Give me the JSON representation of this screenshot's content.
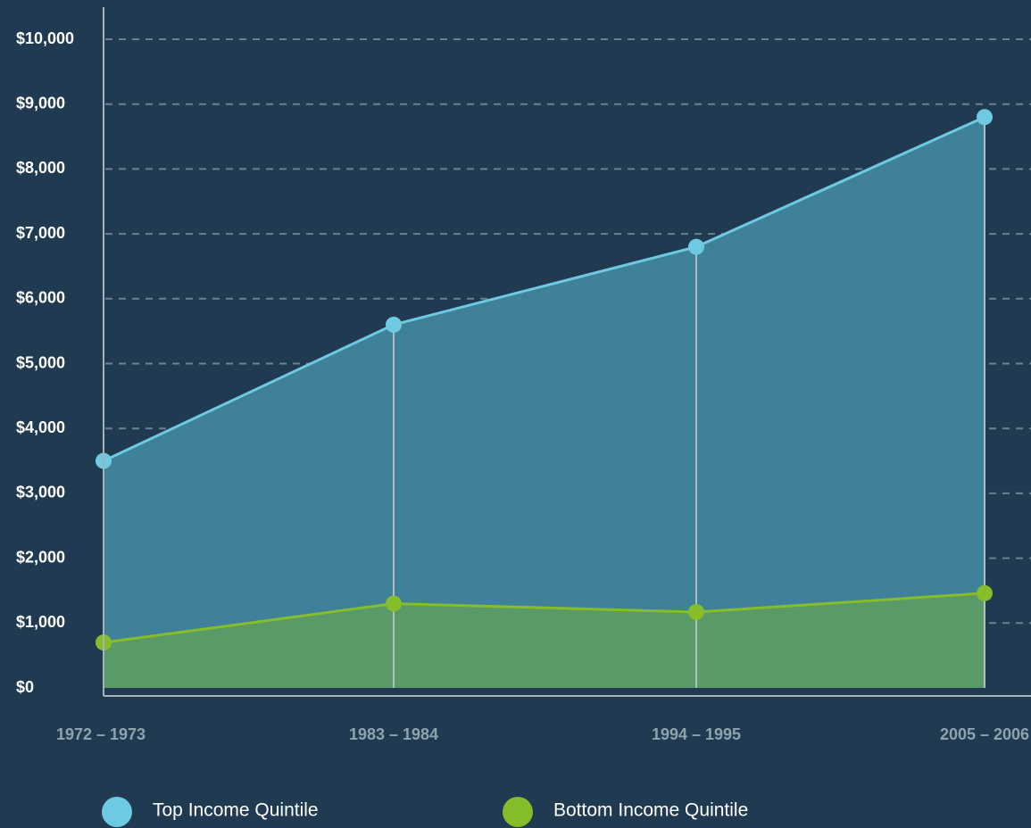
{
  "chart_data": {
    "type": "area",
    "categories": [
      "1972 – 1973",
      "1983 – 1984",
      "1994 – 1995",
      "2005 – 2006"
    ],
    "series": [
      {
        "name": "Top Income Quintile",
        "color": "#6ecae0",
        "fill": "#3f8199",
        "values": [
          3500,
          5600,
          6800,
          8800
        ]
      },
      {
        "name": "Bottom Income Quintile",
        "color": "#86bd2a",
        "fill": "#5a9a68",
        "values": [
          700,
          1300,
          1170,
          1460
        ]
      }
    ],
    "ylim": [
      0,
      10000
    ],
    "yticks": [
      {
        "value": 0,
        "label": "$0"
      },
      {
        "value": 1000,
        "label": "$1,000"
      },
      {
        "value": 2000,
        "label": "$2,000"
      },
      {
        "value": 3000,
        "label": "$3,000"
      },
      {
        "value": 4000,
        "label": "$4,000"
      },
      {
        "value": 5000,
        "label": "$5,000"
      },
      {
        "value": 6000,
        "label": "$6,000"
      },
      {
        "value": 7000,
        "label": "$7,000"
      },
      {
        "value": 8000,
        "label": "$8,000"
      },
      {
        "value": 9000,
        "label": "$9,000"
      },
      {
        "value": 10000,
        "label": "$10,000"
      }
    ],
    "grid": true
  }
}
